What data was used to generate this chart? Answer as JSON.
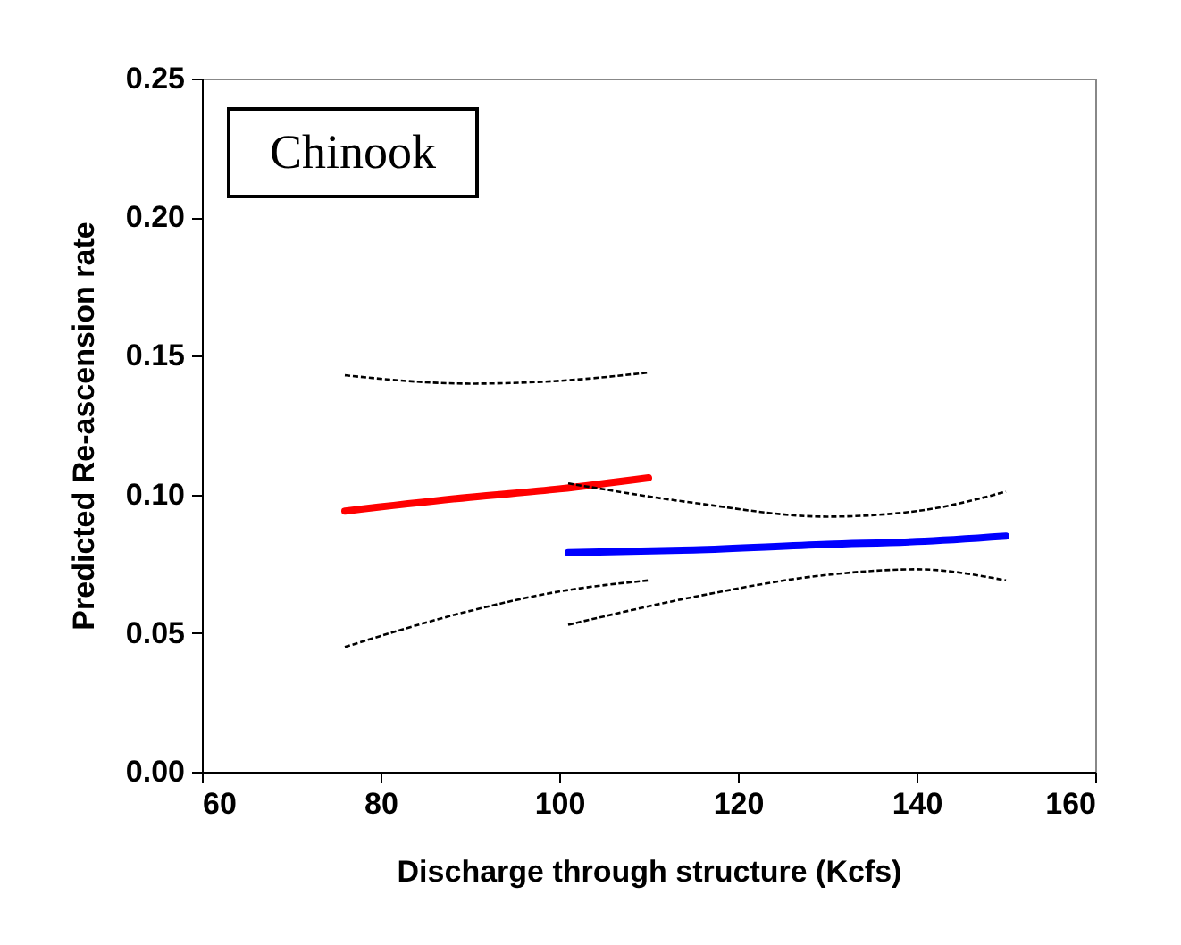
{
  "chart_data": {
    "type": "line",
    "xlabel": "Discharge through structure (Kcfs)",
    "ylabel": "Predicted Re-ascension rate",
    "annotations": [
      "Chinook"
    ],
    "xlim": [
      60,
      160
    ],
    "xticks": [
      60,
      80,
      100,
      120,
      140,
      160
    ],
    "ylim": [
      0,
      0.25
    ],
    "yticks": [
      {
        "value": 0,
        "label": "0.00"
      },
      0.05,
      {
        "value": 0.1,
        "label": "0.10"
      },
      0.15,
      {
        "value": 0.2,
        "label": "0.20"
      },
      0.25
    ],
    "series": [
      {
        "color": "#ff0000",
        "x": [
          76,
          90,
          100,
          110
        ],
        "values": [
          0.094,
          0.099,
          0.102,
          0.106
        ]
      },
      {
        "color": "#000000",
        "line_style": "dashed",
        "x": [
          76,
          90,
          100,
          110
        ],
        "values": [
          0.045,
          0.058,
          0.065,
          0.069
        ]
      },
      {
        "color": "#000000",
        "line_style": "dashed",
        "x": [
          76,
          90,
          100,
          110
        ],
        "values": [
          0.143,
          0.14,
          0.141,
          0.144
        ]
      },
      {
        "color": "#0000ff",
        "x": [
          101,
          115,
          130,
          140,
          150
        ],
        "values": [
          0.079,
          0.08,
          0.082,
          0.083,
          0.085
        ]
      },
      {
        "color": "#000000",
        "line_style": "dashed",
        "x": [
          101,
          115,
          130,
          140,
          150
        ],
        "values": [
          0.053,
          0.063,
          0.071,
          0.073,
          0.069
        ]
      },
      {
        "color": "#000000",
        "line_style": "dashed",
        "x": [
          101,
          115,
          130,
          140,
          150
        ],
        "values": [
          0.104,
          0.097,
          0.092,
          0.094,
          0.101
        ]
      }
    ]
  }
}
